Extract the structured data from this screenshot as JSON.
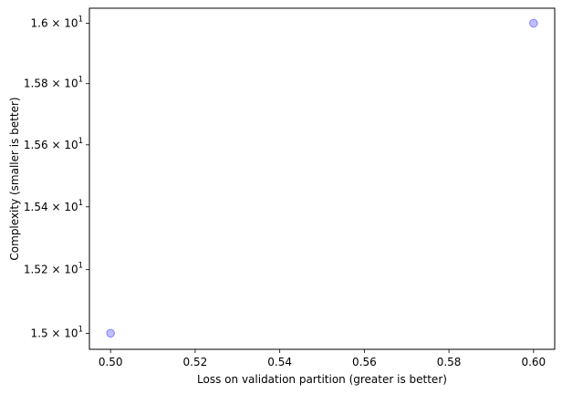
{
  "chart_data": {
    "type": "scatter",
    "title": "",
    "xlabel": "Loss on validation partition (greater is better)",
    "ylabel": "Complexity (smaller is better)",
    "xlim": [
      0.495,
      0.605
    ],
    "ylim": [
      14.95,
      16.05
    ],
    "yscale": "log",
    "grid": false,
    "xticks": [
      0.5,
      0.52,
      0.54,
      0.56,
      0.58,
      0.6
    ],
    "xtick_labels": [
      "0.50",
      "0.52",
      "0.54",
      "0.56",
      "0.58",
      "0.60"
    ],
    "yticks": [
      15.0,
      15.2,
      15.4,
      15.6,
      15.8,
      16.0
    ],
    "ytick_labels": [
      {
        "mantissa": "1.5",
        "base": "10",
        "exp": "1"
      },
      {
        "mantissa": "1.52",
        "base": "10",
        "exp": "1"
      },
      {
        "mantissa": "1.54",
        "base": "10",
        "exp": "1"
      },
      {
        "mantissa": "1.56",
        "base": "10",
        "exp": "1"
      },
      {
        "mantissa": "1.58",
        "base": "10",
        "exp": "1"
      },
      {
        "mantissa": "1.6",
        "base": "10",
        "exp": "1"
      }
    ],
    "points": [
      {
        "x": 0.5,
        "y": 15.0
      },
      {
        "x": 0.6,
        "y": 16.0
      }
    ],
    "marker_color": "#0000ff",
    "marker_alpha": 0.25
  }
}
